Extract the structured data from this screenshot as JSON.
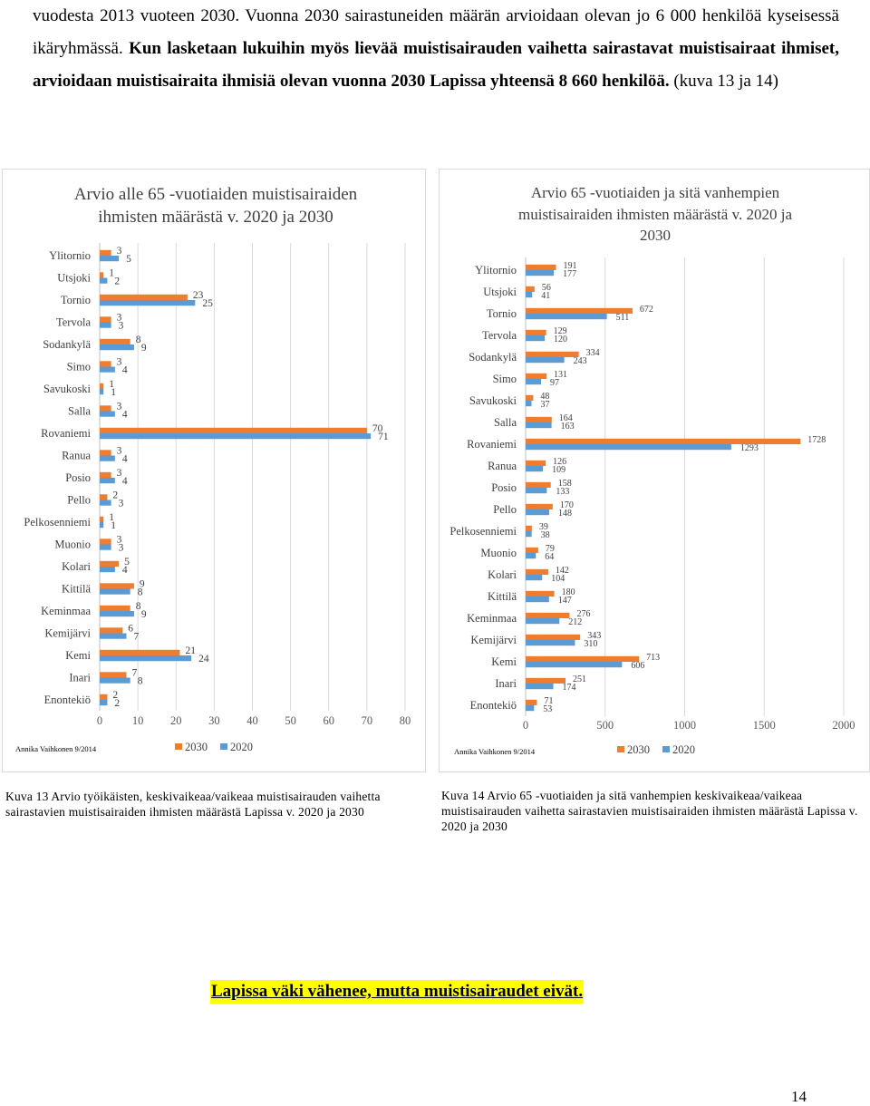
{
  "paragraph": {
    "p1": "vuodesta 2013 vuoteen 2030. Vuonna 2030 sairastuneiden määrän arvioidaan olevan jo 6 000 henkilöä kyseisessä ikäryhmässä. ",
    "p2": "Kun lasketaan lukuihin myös lievää muistisairauden vaihetta sairastavat muistisairaat ihmiset, arvioidaan muistisairaita ihmisiä olevan vuonna 2030 Lapissa yhteensä 8 660 henkilöä.",
    "p3": " (kuva 13 ja 14)"
  },
  "colors": {
    "s2030": "#ED7D31",
    "s2020": "#5B9BD5",
    "grid": "#D9D9D9",
    "axis": "#595959"
  },
  "chart_data": [
    {
      "type": "bar",
      "title": "Arvio alle 65 -vuotiaiden muistisairaiden ihmisten määrästä v. 2020 ja 2030",
      "source": "Annika Vaihkonen 9/2014",
      "categories": [
        "Ylitornio",
        "Utsjoki",
        "Tornio",
        "Tervola",
        "Sodankylä",
        "Simo",
        "Savukoski",
        "Salla",
        "Rovaniemi",
        "Ranua",
        "Posio",
        "Pello",
        "Pelkosenniemi",
        "Muonio",
        "Kolari",
        "Kittilä",
        "Keminmaa",
        "Kemijärvi",
        "Kemi",
        "Inari",
        "Enontekiö"
      ],
      "series": [
        {
          "name": "2030",
          "values": [
            3,
            1,
            23,
            3,
            8,
            3,
            1,
            3,
            70,
            3,
            3,
            2,
            1,
            3,
            5,
            9,
            8,
            6,
            21,
            7,
            2
          ]
        },
        {
          "name": "2020",
          "values": [
            5,
            2,
            25,
            3,
            9,
            4,
            1,
            4,
            71,
            4,
            4,
            3,
            1,
            3,
            4,
            8,
            9,
            7,
            24,
            8,
            2
          ]
        }
      ],
      "xlim": [
        0,
        80
      ],
      "ticks": [
        0,
        10,
        20,
        30,
        40,
        50,
        60,
        70,
        80
      ],
      "legend": "bottom"
    },
    {
      "type": "bar",
      "title": "Arvio 65 -vuotiaiden ja sitä vanhempien muistisairaiden ihmisten määrästä v. 2020 ja 2030",
      "source": "Annika Vaihkonen 9/2014",
      "categories": [
        "Ylitornio",
        "Utsjoki",
        "Tornio",
        "Tervola",
        "Sodankylä",
        "Simo",
        "Savukoski",
        "Salla",
        "Rovaniemi",
        "Ranua",
        "Posio",
        "Pello",
        "Pelkosenniemi",
        "Muonio",
        "Kolari",
        "Kittilä",
        "Keminmaa",
        "Kemijärvi",
        "Kemi",
        "Inari",
        "Enontekiö"
      ],
      "series": [
        {
          "name": "2030",
          "values": [
            191,
            56,
            672,
            129,
            334,
            131,
            48,
            164,
            1728,
            126,
            158,
            170,
            39,
            79,
            142,
            180,
            276,
            343,
            713,
            251,
            71
          ]
        },
        {
          "name": "2020",
          "values": [
            177,
            41,
            511,
            120,
            243,
            97,
            37,
            163,
            1293,
            109,
            133,
            148,
            38,
            64,
            104,
            147,
            212,
            310,
            606,
            174,
            53
          ]
        }
      ],
      "xlim": [
        0,
        2000
      ],
      "ticks": [
        0,
        500,
        1000,
        1500,
        2000
      ],
      "legend": "bottom"
    }
  ],
  "captions": {
    "c13": "Kuva 13 Arvio työikäisten, keskivaikeaa/vaikeaa muistisairauden vaihetta sairastavien muistisairaiden ihmisten määrästä Lapissa v. 2020 ja 2030",
    "c14": "Kuva 14 Arvio 65 -vuotiaiden ja sitä vanhempien keskivaikeaa/vaikeaa muistisairauden vaihetta sairastavien muistisairaiden ihmisten määrästä Lapissa v. 2020 ja 2030"
  },
  "closing": "Lapissa väki vähenee, mutta muistisairaudet eivät.",
  "page_number": "14"
}
